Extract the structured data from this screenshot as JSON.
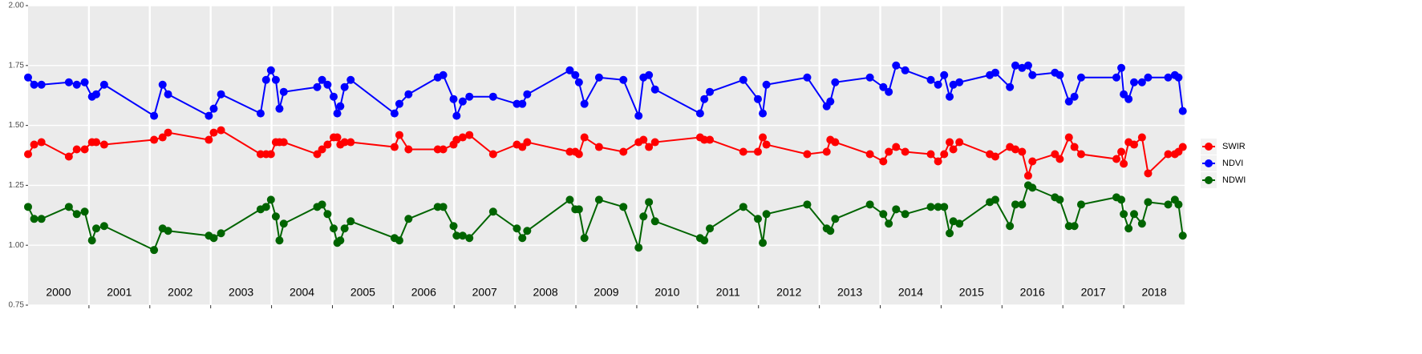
{
  "chart_data": {
    "type": "line",
    "x": [
      2000.0,
      2000.1,
      2000.22,
      2000.67,
      2000.8,
      2000.93,
      2001.05,
      2001.12,
      2001.25,
      2002.07,
      2002.21,
      2002.3,
      2002.97,
      2003.05,
      2003.17,
      2003.82,
      2003.91,
      2003.99,
      2004.07,
      2004.13,
      2004.2,
      2004.75,
      2004.83,
      2004.92,
      2005.02,
      2005.08,
      2005.13,
      2005.2,
      2005.3,
      2006.02,
      2006.1,
      2006.25,
      2006.73,
      2006.82,
      2006.99,
      2007.04,
      2007.14,
      2007.25,
      2007.64,
      2008.03,
      2008.12,
      2008.2,
      2008.9,
      2008.99,
      2009.05,
      2009.14,
      2009.38,
      2009.78,
      2010.03,
      2010.11,
      2010.2,
      2010.3,
      2011.04,
      2011.11,
      2011.2,
      2011.75,
      2011.99,
      2012.07,
      2012.13,
      2012.8,
      2013.12,
      2013.18,
      2013.26,
      2013.83,
      2014.05,
      2014.14,
      2014.26,
      2014.41,
      2014.83,
      2014.95,
      2015.05,
      2015.14,
      2015.2,
      2015.3,
      2015.8,
      2015.89,
      2016.13,
      2016.22,
      2016.33,
      2016.43,
      2016.5,
      2016.87,
      2016.95,
      2017.1,
      2017.19,
      2017.3,
      2017.88,
      2017.96,
      2018.0,
      2018.08,
      2018.17,
      2018.3,
      2018.4,
      2018.73,
      2018.84,
      2018.9,
      2018.97
    ],
    "series": [
      {
        "name": "SWIR",
        "color": "#ff0000",
        "values": [
          1.38,
          1.42,
          1.43,
          1.37,
          1.4,
          1.4,
          1.43,
          1.43,
          1.42,
          1.44,
          1.45,
          1.47,
          1.44,
          1.47,
          1.48,
          1.38,
          1.38,
          1.38,
          1.43,
          1.43,
          1.43,
          1.38,
          1.4,
          1.42,
          1.45,
          1.45,
          1.42,
          1.43,
          1.43,
          1.41,
          1.46,
          1.4,
          1.4,
          1.4,
          1.42,
          1.44,
          1.45,
          1.46,
          1.38,
          1.42,
          1.41,
          1.43,
          1.39,
          1.39,
          1.38,
          1.45,
          1.41,
          1.39,
          1.43,
          1.44,
          1.41,
          1.43,
          1.45,
          1.44,
          1.44,
          1.39,
          1.39,
          1.45,
          1.42,
          1.38,
          1.39,
          1.44,
          1.43,
          1.38,
          1.35,
          1.39,
          1.41,
          1.39,
          1.38,
          1.35,
          1.38,
          1.43,
          1.4,
          1.43,
          1.38,
          1.37,
          1.41,
          1.4,
          1.39,
          1.29,
          1.35,
          1.38,
          1.36,
          1.45,
          1.41,
          1.38,
          1.36,
          1.39,
          1.34,
          1.43,
          1.42,
          1.45,
          1.3,
          1.38,
          1.38,
          1.39,
          1.41
        ]
      },
      {
        "name": "NDVI",
        "color": "#0000ff",
        "values": [
          1.7,
          1.67,
          1.67,
          1.68,
          1.67,
          1.68,
          1.62,
          1.63,
          1.67,
          1.54,
          1.67,
          1.63,
          1.54,
          1.57,
          1.63,
          1.55,
          1.69,
          1.73,
          1.69,
          1.57,
          1.64,
          1.66,
          1.69,
          1.67,
          1.62,
          1.55,
          1.58,
          1.66,
          1.69,
          1.55,
          1.59,
          1.63,
          1.7,
          1.71,
          1.61,
          1.54,
          1.6,
          1.62,
          1.62,
          1.59,
          1.59,
          1.63,
          1.73,
          1.71,
          1.68,
          1.59,
          1.7,
          1.69,
          1.54,
          1.7,
          1.71,
          1.65,
          1.55,
          1.61,
          1.64,
          1.69,
          1.61,
          1.55,
          1.67,
          1.7,
          1.58,
          1.6,
          1.68,
          1.7,
          1.66,
          1.64,
          1.75,
          1.73,
          1.69,
          1.67,
          1.71,
          1.62,
          1.67,
          1.68,
          1.71,
          1.72,
          1.66,
          1.75,
          1.74,
          1.75,
          1.71,
          1.72,
          1.71,
          1.6,
          1.62,
          1.7,
          1.7,
          1.74,
          1.63,
          1.61,
          1.68,
          1.68,
          1.7,
          1.7,
          1.71,
          1.7,
          1.56
        ]
      },
      {
        "name": "NDWI",
        "color": "#006400",
        "values": [
          1.16,
          1.11,
          1.11,
          1.16,
          1.13,
          1.14,
          1.02,
          1.07,
          1.08,
          0.98,
          1.07,
          1.06,
          1.04,
          1.03,
          1.05,
          1.15,
          1.16,
          1.19,
          1.12,
          1.02,
          1.09,
          1.16,
          1.17,
          1.13,
          1.07,
          1.01,
          1.02,
          1.07,
          1.1,
          1.03,
          1.02,
          1.11,
          1.16,
          1.16,
          1.08,
          1.04,
          1.04,
          1.03,
          1.14,
          1.07,
          1.03,
          1.06,
          1.19,
          1.15,
          1.15,
          1.03,
          1.19,
          1.16,
          0.99,
          1.12,
          1.18,
          1.1,
          1.03,
          1.02,
          1.07,
          1.16,
          1.11,
          1.01,
          1.13,
          1.17,
          1.07,
          1.06,
          1.11,
          1.17,
          1.13,
          1.09,
          1.15,
          1.13,
          1.16,
          1.16,
          1.16,
          1.05,
          1.1,
          1.09,
          1.18,
          1.19,
          1.08,
          1.17,
          1.17,
          1.25,
          1.24,
          1.2,
          1.19,
          1.08,
          1.08,
          1.17,
          1.2,
          1.19,
          1.13,
          1.07,
          1.13,
          1.09,
          1.18,
          1.17,
          1.19,
          1.17,
          1.04
        ]
      }
    ],
    "xlim": [
      2000,
      2019
    ],
    "xticks": [
      {
        "value": 2000.5,
        "label": "2000"
      },
      {
        "value": 2001.5,
        "label": "2001"
      },
      {
        "value": 2002.5,
        "label": "2002"
      },
      {
        "value": 2003.5,
        "label": "2003"
      },
      {
        "value": 2004.5,
        "label": "2004"
      },
      {
        "value": 2005.5,
        "label": "2005"
      },
      {
        "value": 2006.5,
        "label": "2006"
      },
      {
        "value": 2007.5,
        "label": "2007"
      },
      {
        "value": 2008.5,
        "label": "2008"
      },
      {
        "value": 2009.5,
        "label": "2009"
      },
      {
        "value": 2010.5,
        "label": "2010"
      },
      {
        "value": 2011.5,
        "label": "2011"
      },
      {
        "value": 2012.5,
        "label": "2012"
      },
      {
        "value": 2013.5,
        "label": "2013"
      },
      {
        "value": 2014.5,
        "label": "2014"
      },
      {
        "value": 2015.5,
        "label": "2015"
      },
      {
        "value": 2016.5,
        "label": "2016"
      },
      {
        "value": 2017.5,
        "label": "2017"
      },
      {
        "value": 2018.5,
        "label": "2018"
      }
    ],
    "xgrid": [
      2001,
      2002,
      2003,
      2004,
      2005,
      2006,
      2007,
      2008,
      2009,
      2010,
      2011,
      2012,
      2013,
      2014,
      2015,
      2016,
      2017,
      2018
    ],
    "ylim": [
      0.75,
      2.0
    ],
    "yticks": [
      {
        "value": 0.75,
        "label": "0.75"
      },
      {
        "value": 1.0,
        "label": "1.00"
      },
      {
        "value": 1.25,
        "label": "1.25"
      },
      {
        "value": 1.5,
        "label": "1.50"
      },
      {
        "value": 1.75,
        "label": "1.75"
      },
      {
        "value": 2.0,
        "label": "2.00"
      }
    ],
    "grid": true,
    "legend": "right"
  }
}
